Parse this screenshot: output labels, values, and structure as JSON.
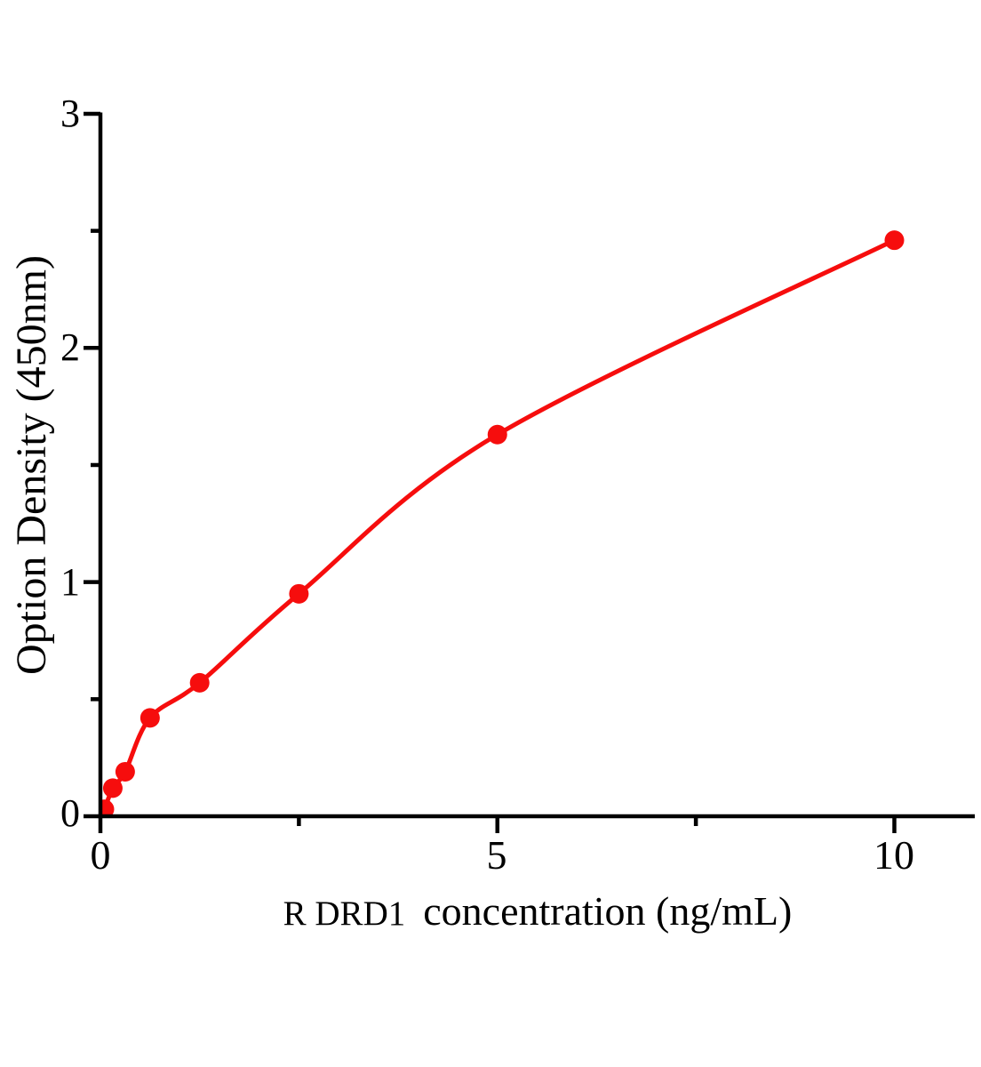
{
  "chart_data": {
    "type": "scatter",
    "title": "",
    "xlabel": "R DRD1 concentration（ng/mL）",
    "xlabel_parts": {
      "prefix": "R DRD1",
      "rest": "concentration（ng/mL）"
    },
    "ylabel": "Option Density（450nm）",
    "xlim": [
      0,
      11
    ],
    "ylim": [
      0,
      3
    ],
    "x_major_ticks": [
      0,
      5,
      10
    ],
    "x_tick_labels": [
      "0",
      "5",
      "10"
    ],
    "x_minor_ticks": [
      2.5,
      7.5
    ],
    "y_major_ticks": [
      0,
      1,
      2,
      3
    ],
    "y_tick_labels": [
      "0",
      "1",
      "2",
      "3"
    ],
    "y_minor_ticks": [
      0.5,
      1.5,
      2.5
    ],
    "grid": false,
    "legend": false,
    "marker": "circle",
    "color": "#f60d0d",
    "axis_color": "#000000",
    "curve_start": {
      "x": 0,
      "y": 0
    },
    "points": [
      {
        "x": 0.05,
        "y": 0.03
      },
      {
        "x": 0.156,
        "y": 0.12
      },
      {
        "x": 0.312,
        "y": 0.19
      },
      {
        "x": 0.625,
        "y": 0.42
      },
      {
        "x": 1.25,
        "y": 0.57
      },
      {
        "x": 2.5,
        "y": 0.95
      },
      {
        "x": 5,
        "y": 1.63
      },
      {
        "x": 10,
        "y": 2.46
      }
    ]
  }
}
